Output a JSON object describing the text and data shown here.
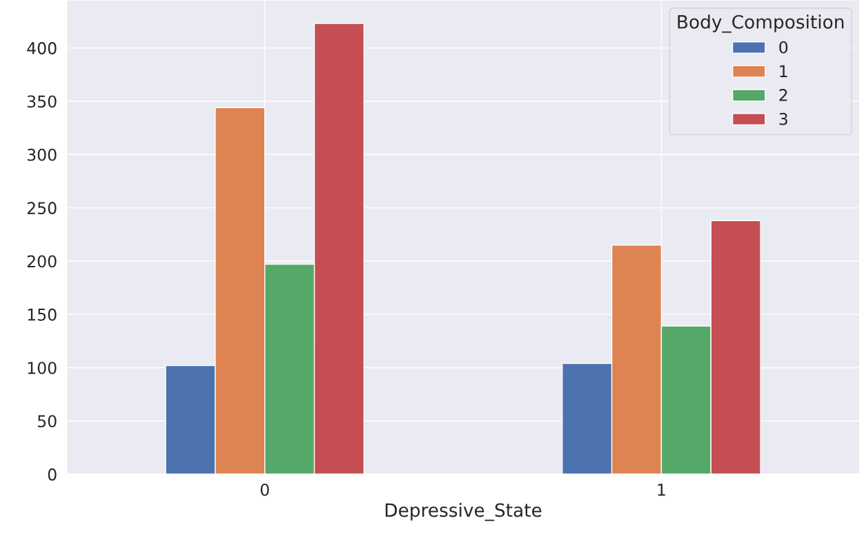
{
  "chart_data": {
    "type": "bar",
    "xlabel": "Depressive_State",
    "legend_title": "Body_Composition",
    "categories": [
      "0",
      "1"
    ],
    "series": [
      {
        "name": "0",
        "color": "#4c72b0",
        "values": [
          102,
          104
        ]
      },
      {
        "name": "1",
        "color": "#dd8452",
        "values": [
          344,
          215
        ]
      },
      {
        "name": "2",
        "color": "#55a868",
        "values": [
          197,
          139
        ]
      },
      {
        "name": "3",
        "color": "#c44e52",
        "values": [
          423,
          238
        ]
      }
    ],
    "ylim": [
      0,
      445
    ],
    "yticks": [
      0,
      50,
      100,
      150,
      200,
      250,
      300,
      350,
      400
    ],
    "grid": true,
    "legend": "top right"
  }
}
